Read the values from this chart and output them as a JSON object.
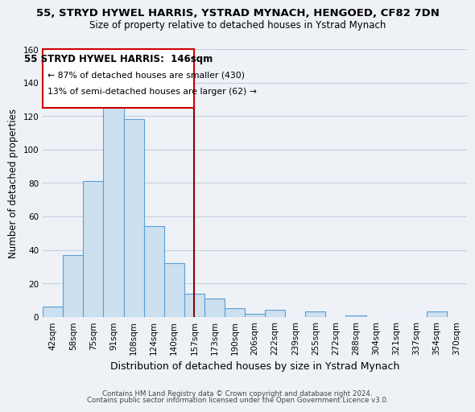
{
  "title": "55, STRYD HYWEL HARRIS, YSTRAD MYNACH, HENGOED, CF82 7DN",
  "subtitle": "Size of property relative to detached houses in Ystrad Mynach",
  "xlabel": "Distribution of detached houses by size in Ystrad Mynach",
  "ylabel": "Number of detached properties",
  "bar_labels": [
    "42sqm",
    "58sqm",
    "75sqm",
    "91sqm",
    "108sqm",
    "124sqm",
    "140sqm",
    "157sqm",
    "173sqm",
    "190sqm",
    "206sqm",
    "222sqm",
    "239sqm",
    "255sqm",
    "272sqm",
    "288sqm",
    "304sqm",
    "321sqm",
    "337sqm",
    "354sqm",
    "370sqm"
  ],
  "bar_heights": [
    6,
    37,
    81,
    125,
    118,
    54,
    32,
    14,
    11,
    5,
    2,
    4,
    0,
    3,
    0,
    1,
    0,
    0,
    0,
    3,
    0
  ],
  "bar_color": "#cce0f0",
  "bar_edge_color": "#5a9fd4",
  "ylim": [
    0,
    160
  ],
  "yticks": [
    0,
    20,
    40,
    60,
    80,
    100,
    120,
    140,
    160
  ],
  "vline_index": 7.0,
  "vline_color": "#8b0000",
  "property_label": "55 STRYD HYWEL HARRIS:  146sqm",
  "annotation_line1": "← 87% of detached houses are smaller (430)",
  "annotation_line2": "13% of semi-detached houses are larger (62) →",
  "annotation_box_color": "#ffffff",
  "annotation_box_edge": "#cc0000",
  "footer_line1": "Contains HM Land Registry data © Crown copyright and database right 2024.",
  "footer_line2": "Contains public sector information licensed under the Open Government Licence v3.0.",
  "bg_color": "#eef2f7",
  "plot_bg_color": "#eef2f7",
  "grid_color": "#c0cfe0"
}
